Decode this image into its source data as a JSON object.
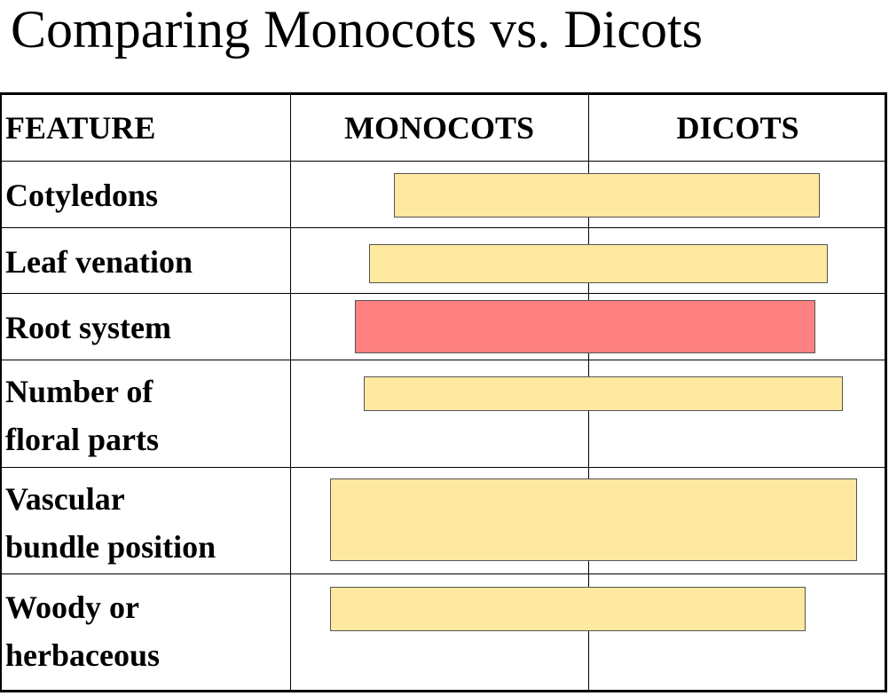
{
  "title": "Comparing Monocots vs. Dicots",
  "table": {
    "headers": [
      "FEATURE",
      "MONOCOTS",
      "DICOTS"
    ],
    "rows": [
      {
        "feature": [
          "Cotyledons"
        ],
        "mask": "cover"
      },
      {
        "feature": [
          "Leaf venation"
        ],
        "mask": "cover"
      },
      {
        "feature": [
          "Root system"
        ],
        "mask": "highlighted"
      },
      {
        "feature": [
          "Number of",
          "floral parts"
        ],
        "mask": "cover"
      },
      {
        "feature": [
          "Vascular",
          "bundle position"
        ],
        "mask": "cover"
      },
      {
        "feature": [
          "Woody or",
          "herbaceous"
        ],
        "mask": "cover"
      }
    ]
  },
  "colors": {
    "cover": "#ffe8a0",
    "highlight": "#ff8080",
    "border": "#000000"
  }
}
